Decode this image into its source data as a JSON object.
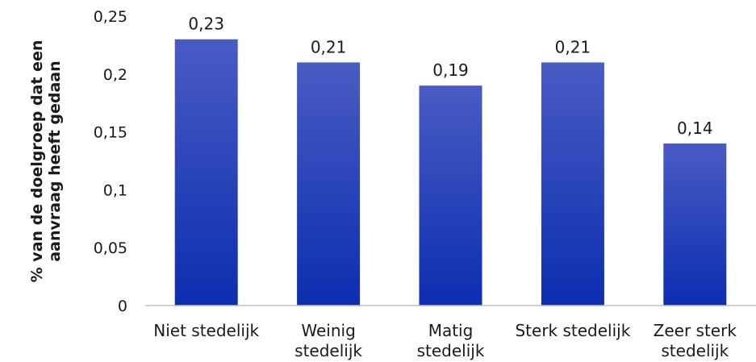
{
  "chart_data": {
    "type": "bar",
    "categories": [
      [
        "Niet stedelijk"
      ],
      [
        "Weinig",
        "stedelijk"
      ],
      [
        "Matig",
        "stedelijk"
      ],
      [
        "Sterk stedelijk"
      ],
      [
        "Zeer sterk",
        "stedelijk"
      ]
    ],
    "values": [
      0.23,
      0.21,
      0.19,
      0.21,
      0.14
    ],
    "data_labels": [
      "0,23",
      "0,21",
      "0,19",
      "0,21",
      "0,14"
    ],
    "title": "",
    "xlabel": "",
    "ylabel": [
      "% van de doelgroep dat een",
      "aanvraag heeft gedaan"
    ],
    "ylim": [
      0,
      0.25
    ],
    "yticks": [
      0,
      0.05,
      0.1,
      0.15,
      0.2,
      0.25
    ],
    "ytick_labels": [
      "0",
      "0,05",
      "0,1",
      "0,15",
      "0,2",
      "0,25"
    ],
    "grid": false,
    "colors": {
      "bar_top": "#4a5bc4",
      "bar_bottom": "#0b2eb0",
      "axis": "#bfbfbf"
    }
  }
}
